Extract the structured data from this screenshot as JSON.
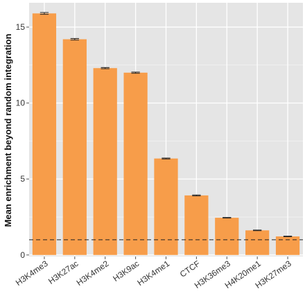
{
  "chart_data": {
    "type": "bar",
    "title": "",
    "xlabel": "",
    "ylabel": "Mean enrichment beyond random integration",
    "categories": [
      "H3K4me3",
      "H3K27ac",
      "H3K4me2",
      "H3K9ac",
      "H3K4me1",
      "CTCF",
      "H3K36me3",
      "H4K20me1",
      "H3K27me3"
    ],
    "values": [
      15.9,
      14.2,
      12.3,
      12.0,
      6.35,
      3.92,
      2.45,
      1.62,
      1.22
    ],
    "errors": [
      0.06,
      0.05,
      0.04,
      0.04,
      0.03,
      0.03,
      0.02,
      0.02,
      0.02
    ],
    "ylim": [
      -0.1,
      16.6
    ],
    "yticks": [
      0,
      5,
      10,
      15
    ],
    "reference_line": 1,
    "grid": true,
    "colors": {
      "bar": "#f79d4a",
      "panel_bg": "#e5e5e5",
      "grid": "#ffffff",
      "error_bar": "#222222",
      "reference_line": "#222222"
    }
  }
}
